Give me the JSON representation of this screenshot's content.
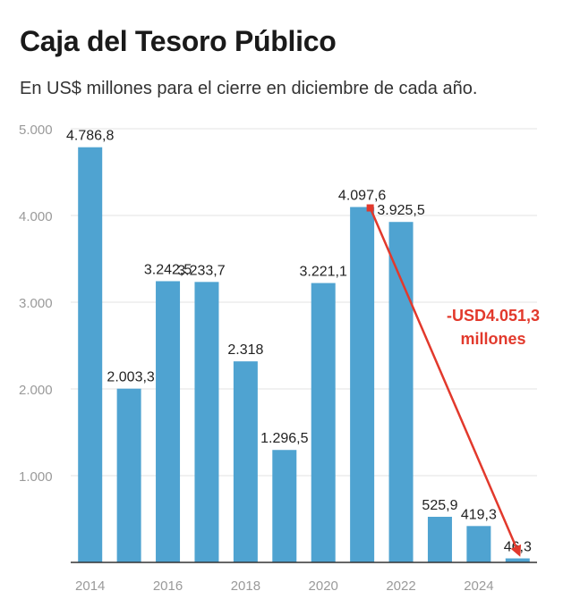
{
  "chart_data": {
    "type": "bar",
    "title": "Caja del Tesoro Público",
    "subtitle": "En US$ millones para el cierre en diciembre de cada año.",
    "categories": [
      "2014",
      "2015",
      "2016",
      "2017",
      "2018",
      "2019",
      "2020",
      "2021",
      "2022",
      "2023",
      "2024",
      "2025"
    ],
    "values": [
      4786.8,
      2003.3,
      3242.5,
      3233.7,
      2318,
      1296.5,
      3221.1,
      4097.6,
      3925.5,
      525.9,
      419.3,
      46.3
    ],
    "data_labels": [
      "4.786,8",
      "2.003,3",
      "3.242,5",
      "3.233,7",
      "2.318",
      "1.296,5",
      "3.221,1",
      "4.097,6",
      "3.925,5",
      "525,9",
      "419,3",
      "46,3"
    ],
    "x_tick_labels": [
      "2014",
      "2016",
      "2018",
      "2020",
      "2022",
      "2024"
    ],
    "y_tick_labels": [
      "1.000",
      "2.000",
      "3.000",
      "4.000",
      "5.000"
    ],
    "y_ticks": [
      1000,
      2000,
      3000,
      4000,
      5000
    ],
    "ylim": [
      0,
      5000
    ],
    "grid": true,
    "bar_color": "#4fa3d1",
    "annotation": {
      "line1": "-USD4.051,3",
      "line2": "millones",
      "from_category": "2021",
      "to_category": "2025",
      "color": "#e2392c"
    }
  }
}
